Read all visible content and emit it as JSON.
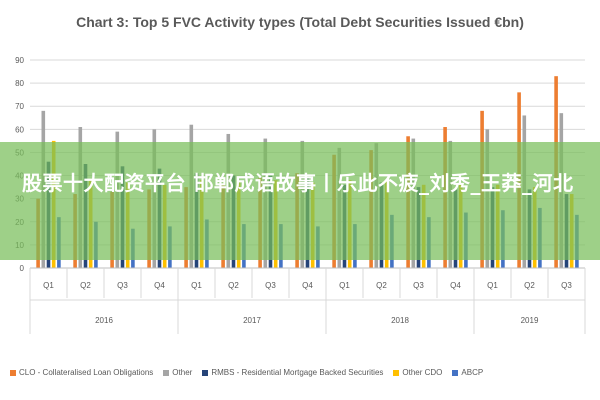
{
  "chart_data": {
    "type": "bar",
    "title": "Chart 3: Top 5 FVC Activity types (Total Debt Securities Issued €bn)",
    "xlabel": "",
    "ylabel": "",
    "ylim": [
      0,
      90
    ],
    "y_ticks": [
      0,
      10,
      20,
      30,
      40,
      50,
      60,
      70,
      80,
      90
    ],
    "grid": true,
    "legend_position": "bottom",
    "categories": [
      "Q1",
      "Q2",
      "Q3",
      "Q4",
      "Q1",
      "Q2",
      "Q3",
      "Q4",
      "Q1",
      "Q2",
      "Q3",
      "Q4",
      "Q1",
      "Q2",
      "Q3"
    ],
    "groups": [
      {
        "label": "2016",
        "count": 4
      },
      {
        "label": "2017",
        "count": 4
      },
      {
        "label": "2018",
        "count": 4
      },
      {
        "label": "2019",
        "count": 3
      }
    ],
    "series": [
      {
        "name": "CLO - Collateralised Loan Obligations",
        "color": "#ed7d31",
        "values": [
          30,
          32,
          33,
          34,
          35,
          36,
          39,
          41,
          49,
          51,
          57,
          61,
          68,
          76,
          83
        ]
      },
      {
        "name": "Other",
        "color": "#a5a5a5",
        "values": [
          68,
          61,
          59,
          60,
          62,
          58,
          56,
          55,
          52,
          54,
          56,
          55,
          60,
          66,
          67
        ]
      },
      {
        "name": "RMBS - Residential Mortgage Backed Securities",
        "color": "#264478",
        "values": [
          46,
          45,
          44,
          43,
          41,
          40,
          40,
          39,
          36,
          37,
          35,
          34,
          35,
          34,
          32
        ]
      },
      {
        "name": "Other CDO",
        "color": "#ffc000",
        "values": [
          55,
          38,
          37,
          36,
          38,
          37,
          38,
          37,
          38,
          38,
          36,
          36,
          36,
          35,
          32
        ]
      },
      {
        "name": "ABCP",
        "color": "#4472c4",
        "values": [
          22,
          20,
          17,
          18,
          21,
          19,
          19,
          18,
          19,
          23,
          22,
          24,
          25,
          26,
          23
        ]
      }
    ]
  },
  "overlay": {
    "text": "股票十大配资平台 邯郸成语故事丨乐此不疲_刘秀_王莽_河北",
    "color": "#7ebd5a"
  }
}
